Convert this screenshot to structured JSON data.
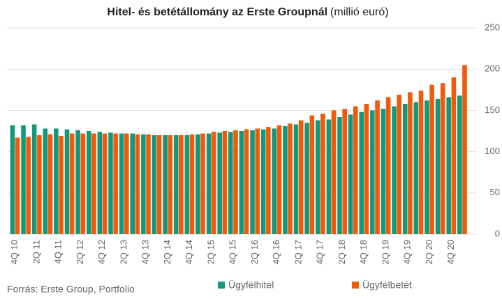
{
  "chart_data": {
    "type": "bar",
    "title": "Hitel- és betétállomány az Erste Groupnál",
    "subtitle": "(millió euró)",
    "source": "Forrás: Erste Group, Portfolio",
    "categories": [
      "4Q 10",
      null,
      "2Q 11",
      null,
      "4Q 11",
      null,
      "2Q 12",
      null,
      "4Q 12",
      null,
      "2Q 13",
      null,
      "4Q 13",
      null,
      "2Q 14",
      null,
      "4Q 14",
      null,
      "2Q 15",
      null,
      "4Q 15",
      null,
      "2Q 16",
      null,
      "4Q 16",
      null,
      "2Q 17",
      null,
      "4Q 17",
      null,
      "2Q 18",
      null,
      "4Q 18",
      null,
      "2Q 19",
      null,
      "4Q 19",
      null,
      "2Q 20",
      null,
      "4Q 20",
      null
    ],
    "series": [
      {
        "name": "Ügyfélhitel",
        "color": "#12987a",
        "values": [
          132,
          132,
          133,
          128,
          128,
          127,
          126,
          125,
          124,
          123,
          122,
          122,
          121,
          120,
          120,
          120,
          120,
          121,
          122,
          123,
          124,
          125,
          126,
          127,
          128,
          131,
          133,
          135,
          138,
          139,
          142,
          145,
          148,
          150,
          152,
          155,
          158,
          160,
          162,
          164,
          166,
          168
        ]
      },
      {
        "name": "Ügyfélbetét",
        "color": "#f15a0a",
        "values": [
          117,
          118,
          120,
          121,
          119,
          122,
          122,
          122,
          122,
          122,
          122,
          121,
          121,
          120,
          120,
          120,
          121,
          122,
          124,
          125,
          126,
          127,
          128,
          130,
          132,
          134,
          138,
          144,
          146,
          150,
          152,
          155,
          158,
          162,
          166,
          169,
          172,
          174,
          181,
          183,
          190,
          205
        ]
      }
    ],
    "ylim": [
      0,
      250
    ],
    "yticks": [
      0,
      50,
      100,
      150,
      200,
      250
    ],
    "grid": true,
    "y_axis_side": "right"
  }
}
